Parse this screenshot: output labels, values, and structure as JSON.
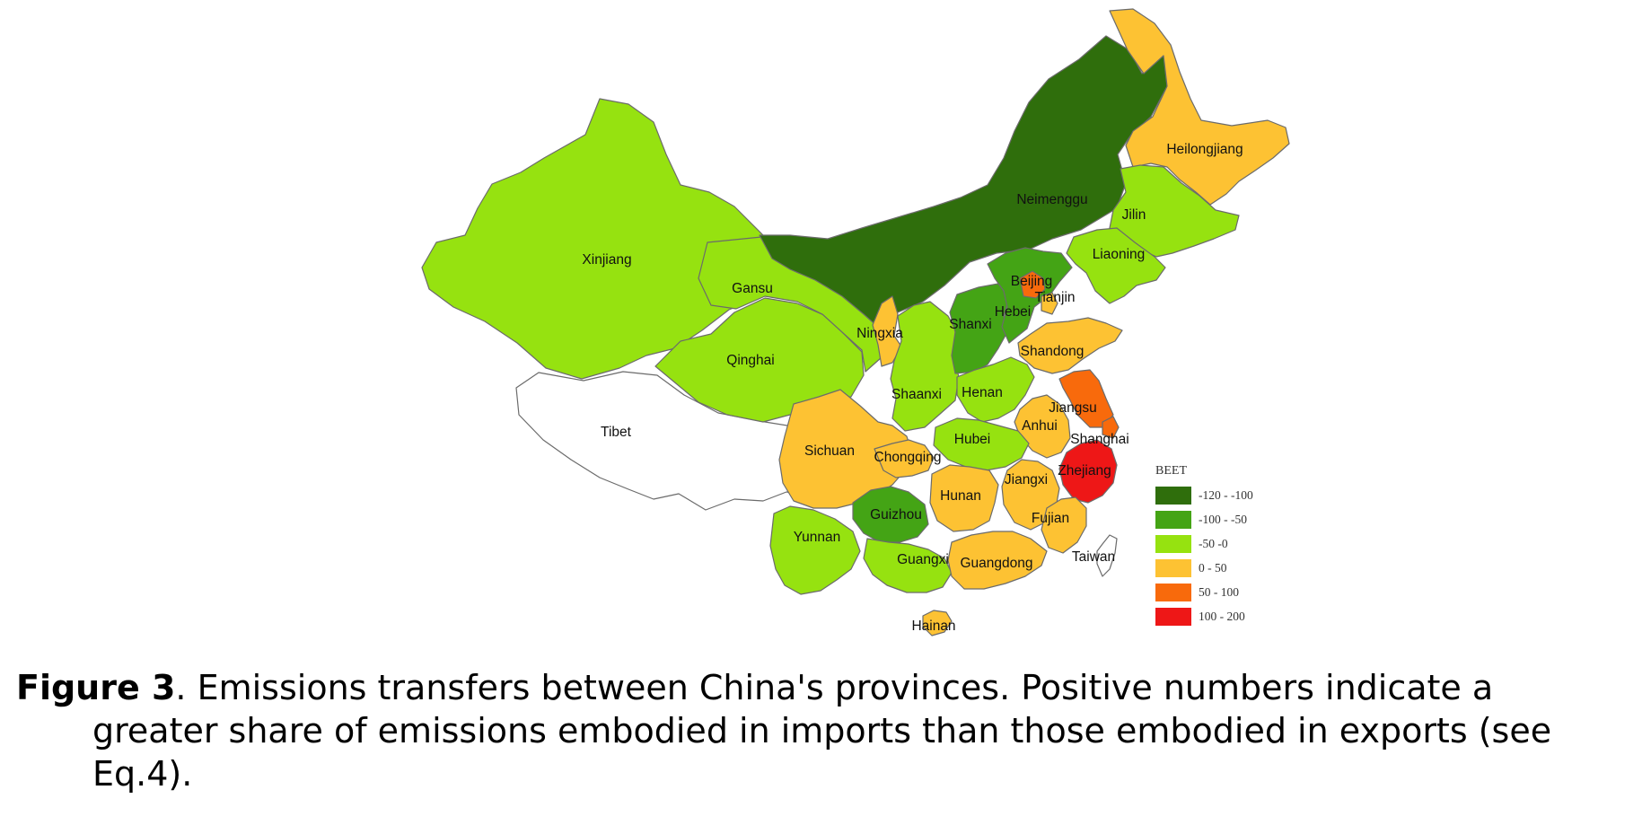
{
  "colors": {
    "c_-120_-100": "#2f6e0c",
    "c_-100_-50": "#44a415",
    "c_-50_0": "#96e210",
    "c_0_50": "#fdc233",
    "c_50_100": "#f86a0c",
    "c_100_200": "#ee1717",
    "no_data": "#ffffff",
    "border": "#6b6b6b"
  },
  "legend": {
    "title": "BEET",
    "items": [
      {
        "label": "-120 - -100",
        "class": "c_-120_-100"
      },
      {
        "label": "-100 - -50",
        "class": "c_-100_-50"
      },
      {
        "label": "-50 -0",
        "class": "c_-50_0"
      },
      {
        "label": "0 - 50",
        "class": "c_0_50"
      },
      {
        "label": "50 - 100",
        "class": "c_50_100"
      },
      {
        "label": "100 - 200",
        "class": "c_100_200"
      }
    ]
  },
  "provinces": [
    {
      "name": "Xinjiang",
      "class": "c_-50_0"
    },
    {
      "name": "Tibet",
      "class": "no_data"
    },
    {
      "name": "Qinghai",
      "class": "c_-50_0"
    },
    {
      "name": "Gansu",
      "class": "c_-50_0"
    },
    {
      "name": "Neimenggu",
      "class": "c_-120_-100"
    },
    {
      "name": "Heilongjiang",
      "class": "c_0_50"
    },
    {
      "name": "Jilin",
      "class": "c_-50_0"
    },
    {
      "name": "Liaoning",
      "class": "c_-50_0"
    },
    {
      "name": "Ningxia",
      "class": "c_0_50"
    },
    {
      "name": "Shaanxi",
      "class": "c_-50_0"
    },
    {
      "name": "Shanxi",
      "class": "c_-100_-50"
    },
    {
      "name": "Hebei",
      "class": "c_-100_-50"
    },
    {
      "name": "Beijing",
      "class": "c_50_100"
    },
    {
      "name": "Tianjin",
      "class": "c_0_50"
    },
    {
      "name": "Shandong",
      "class": "c_0_50"
    },
    {
      "name": "Henan",
      "class": "c_-50_0"
    },
    {
      "name": "Jiangsu",
      "class": "c_50_100"
    },
    {
      "name": "Anhui",
      "class": "c_0_50"
    },
    {
      "name": "Shanghai",
      "class": "c_50_100"
    },
    {
      "name": "Hubei",
      "class": "c_-50_0"
    },
    {
      "name": "Sichuan",
      "class": "c_0_50"
    },
    {
      "name": "Chongqing",
      "class": "c_0_50"
    },
    {
      "name": "Zhejiang",
      "class": "c_100_200"
    },
    {
      "name": "Hunan",
      "class": "c_0_50"
    },
    {
      "name": "Jiangxi",
      "class": "c_0_50"
    },
    {
      "name": "Guizhou",
      "class": "c_-100_-50"
    },
    {
      "name": "Fujian",
      "class": "c_0_50"
    },
    {
      "name": "Yunnan",
      "class": "c_-50_0"
    },
    {
      "name": "Guangxi",
      "class": "c_-50_0"
    },
    {
      "name": "Guangdong",
      "class": "c_0_50"
    },
    {
      "name": "Taiwan",
      "class": "no_data"
    },
    {
      "name": "Hainan",
      "class": "c_0_50"
    }
  ],
  "caption": {
    "label": "Figure 3",
    "line1": ". Emissions transfers between China's provinces. Positive numbers indicate a",
    "line2": "greater share of emissions embodied in imports than those embodied in exports (see",
    "line3": "Eq.4)."
  }
}
